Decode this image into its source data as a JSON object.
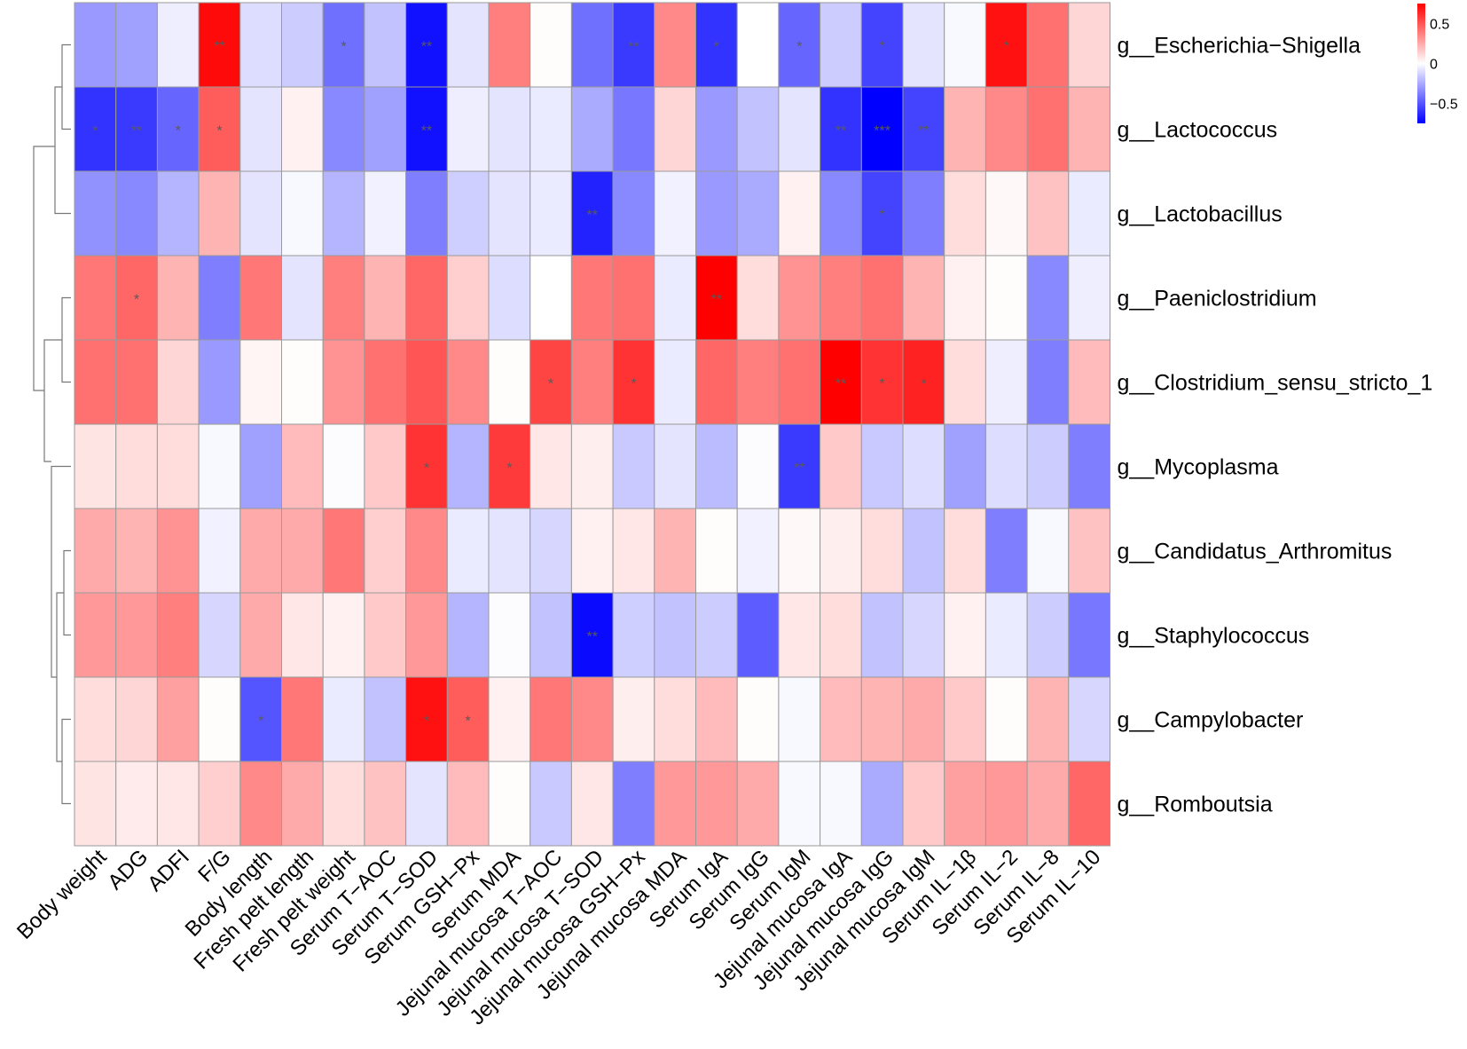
{
  "chart_data": {
    "type": "heatmap",
    "title": "",
    "row_labels": [
      "g__Escherichia−Shigella",
      "g__Lactococcus",
      "g__Lactobacillus",
      "g__Paeniclostridium",
      "g__Clostridium_sensu_stricto_1",
      "g__Mycoplasma",
      "g__Candidatus_Arthromitus",
      "g__Staphylococcus",
      "g__Campylobacter",
      "g__Romboutsia"
    ],
    "col_labels": [
      "Body weight",
      "ADG",
      "ADFI",
      "F/G",
      "Body length",
      "Fresh pelt length",
      "Fresh pelt weight",
      "Serum T−AOC",
      "Serum T−SOD",
      "Serum GSH−Px",
      "Serum MDA",
      "Jejunal mucosa T−AOC",
      "Jejunal mucosa T−SOD",
      "Jejunal mucosa GSH−Px",
      "Jejunal mucosa MDA",
      "Serum IgA",
      "Serum IgG",
      "Serum IgM",
      "Jejunal mucosa IgA",
      "Jejunal mucosa IgG",
      "Jejunal mucosa IgM",
      "Serum IL−1β",
      "Serum IL−2",
      "Serum IL−8",
      "Serum IL−10"
    ],
    "values": [
      [
        -0.3,
        -0.28,
        -0.05,
        0.72,
        -0.1,
        -0.15,
        -0.42,
        -0.18,
        -0.7,
        -0.08,
        0.38,
        0.01,
        -0.42,
        -0.58,
        0.35,
        -0.6,
        0.0,
        -0.45,
        -0.15,
        -0.55,
        -0.08,
        -0.02,
        0.7,
        0.42,
        0.12
      ],
      [
        -0.6,
        -0.58,
        -0.45,
        0.48,
        -0.08,
        0.04,
        -0.35,
        -0.28,
        -0.7,
        -0.05,
        -0.08,
        -0.06,
        -0.25,
        -0.4,
        0.12,
        -0.3,
        -0.18,
        -0.08,
        -0.6,
        -0.75,
        -0.55,
        0.22,
        0.35,
        0.42,
        0.22
      ],
      [
        -0.32,
        -0.35,
        -0.22,
        0.22,
        -0.08,
        -0.02,
        -0.22,
        -0.04,
        -0.38,
        -0.14,
        -0.08,
        -0.06,
        -0.65,
        -0.35,
        -0.04,
        -0.3,
        -0.25,
        0.04,
        -0.35,
        -0.55,
        -0.38,
        0.1,
        0.02,
        0.18,
        -0.06
      ],
      [
        0.4,
        0.45,
        0.22,
        -0.38,
        0.4,
        -0.08,
        0.38,
        0.22,
        0.45,
        0.14,
        -0.1,
        0.0,
        0.4,
        0.42,
        -0.06,
        0.75,
        0.1,
        0.32,
        0.38,
        0.42,
        0.22,
        0.04,
        0.01,
        -0.35,
        -0.05
      ],
      [
        0.42,
        0.42,
        0.12,
        -0.3,
        0.03,
        0.01,
        0.32,
        0.42,
        0.5,
        0.35,
        0.01,
        0.55,
        0.38,
        0.6,
        -0.06,
        0.45,
        0.38,
        0.42,
        0.75,
        0.6,
        0.65,
        0.1,
        -0.05,
        -0.38,
        0.2
      ],
      [
        0.08,
        0.1,
        0.1,
        -0.02,
        -0.28,
        0.2,
        -0.01,
        0.16,
        0.6,
        -0.22,
        0.58,
        0.07,
        0.05,
        -0.16,
        -0.08,
        -0.2,
        -0.01,
        -0.58,
        0.16,
        -0.16,
        -0.1,
        -0.28,
        -0.1,
        -0.15,
        -0.38
      ],
      [
        0.25,
        0.22,
        0.32,
        -0.04,
        0.25,
        0.25,
        0.4,
        0.14,
        0.35,
        -0.06,
        -0.08,
        -0.12,
        0.04,
        0.07,
        0.22,
        0.01,
        -0.04,
        0.02,
        0.05,
        0.1,
        -0.18,
        0.1,
        -0.38,
        -0.02,
        0.18
      ],
      [
        0.3,
        0.3,
        0.38,
        -0.12,
        0.25,
        0.07,
        0.04,
        0.16,
        0.3,
        -0.22,
        -0.01,
        -0.18,
        -0.72,
        -0.14,
        -0.18,
        -0.15,
        -0.48,
        0.07,
        0.1,
        -0.18,
        -0.12,
        0.04,
        -0.06,
        -0.15,
        -0.4
      ],
      [
        0.1,
        0.12,
        0.28,
        0.01,
        -0.5,
        0.4,
        -0.06,
        -0.18,
        0.7,
        0.48,
        0.04,
        0.4,
        0.35,
        0.05,
        0.1,
        0.2,
        0.01,
        -0.02,
        0.2,
        0.22,
        0.25,
        0.16,
        0.01,
        0.22,
        -0.12
      ],
      [
        0.08,
        0.06,
        0.07,
        0.14,
        0.35,
        0.25,
        0.1,
        0.18,
        -0.08,
        0.2,
        0.01,
        -0.16,
        0.07,
        -0.38,
        0.3,
        0.3,
        0.25,
        -0.02,
        -0.02,
        -0.25,
        0.16,
        0.28,
        0.3,
        0.25,
        0.45
      ]
    ],
    "significance": [
      [
        "",
        "",
        "",
        "**",
        "",
        "",
        "*",
        "",
        "**",
        "",
        "",
        "",
        "",
        "**",
        "",
        "*",
        "",
        "*",
        "",
        "*",
        "",
        "",
        "*",
        "",
        ""
      ],
      [
        "*",
        "**",
        "*",
        "*",
        "",
        "",
        "",
        "",
        "**",
        "",
        "",
        "",
        "",
        "",
        "",
        "",
        "",
        "",
        "**",
        "***",
        "**",
        "",
        "",
        "",
        ""
      ],
      [
        "",
        "",
        "",
        "",
        "",
        "",
        "",
        "",
        "",
        "",
        "",
        "",
        "**",
        "",
        "",
        "",
        "",
        "",
        "",
        "*",
        "",
        "",
        "",
        "",
        ""
      ],
      [
        "",
        "*",
        "",
        "",
        "",
        "",
        "",
        "",
        "",
        "",
        "",
        "",
        "",
        "",
        "",
        "**",
        "",
        "",
        "",
        "",
        "",
        "",
        "",
        "",
        ""
      ],
      [
        "",
        "",
        "",
        "",
        "",
        "",
        "",
        "",
        "",
        "",
        "",
        "*",
        "",
        "*",
        "",
        "",
        "",
        "",
        "**",
        "*",
        "*",
        "",
        "",
        "",
        ""
      ],
      [
        "",
        "",
        "",
        "",
        "",
        "",
        "",
        "",
        "*",
        "",
        "*",
        "",
        "",
        "",
        "",
        "",
        "",
        "**",
        "",
        "",
        "",
        "",
        "",
        "",
        ""
      ],
      [
        "",
        "",
        "",
        "",
        "",
        "",
        "",
        "",
        "",
        "",
        "",
        "",
        "",
        "",
        "",
        "",
        "",
        "",
        "",
        "",
        "",
        "",
        "",
        "",
        ""
      ],
      [
        "",
        "",
        "",
        "",
        "",
        "",
        "",
        "",
        "",
        "",
        "",
        "",
        "**",
        "",
        "",
        "",
        "",
        "",
        "",
        "",
        "",
        "",
        "",
        "",
        ""
      ],
      [
        "",
        "",
        "",
        "",
        "*",
        "",
        "",
        "",
        "*",
        "*",
        "",
        "",
        "",
        "",
        "",
        "",
        "",
        "",
        "",
        "",
        "",
        "",
        "",
        "",
        ""
      ],
      [
        "",
        "",
        "",
        "",
        "",
        "",
        "",
        "",
        "",
        "",
        "",
        "",
        "",
        "",
        "",
        "",
        "",
        "",
        "",
        "",
        "",
        "",
        "",
        "",
        ""
      ]
    ],
    "color_scale": {
      "min": -0.75,
      "max": 0.75,
      "low_color": "#0000ff",
      "mid_color": "#ffffff",
      "high_color": "#ff0000"
    },
    "legend": {
      "ticks": [
        {
          "value": 0.5,
          "label": "0.5"
        },
        {
          "value": 0,
          "label": "0"
        },
        {
          "value": -0.5,
          "label": "−0.5"
        }
      ],
      "placement": "top-right"
    },
    "row_dendrogram": "left"
  }
}
